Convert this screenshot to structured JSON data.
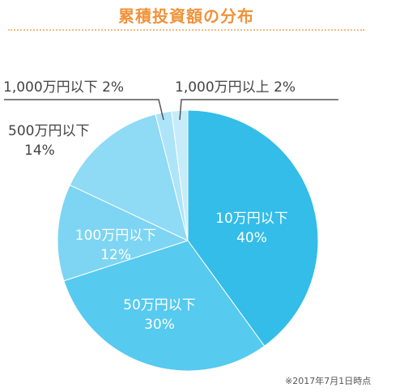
{
  "title": "累積投資額の分布",
  "footnote": "※2017年7月1日時点",
  "colors": {
    "title": "#f0933a",
    "title_rule": "#f5b980",
    "slices": [
      "#33bde8",
      "#56caef",
      "#7dd5f3",
      "#8fdaf5",
      "#aee4f7",
      "#c6ecf9"
    ]
  },
  "chart_data": {
    "type": "pie",
    "title": "累積投資額の分布",
    "slices": [
      {
        "category": "10万円以下",
        "value": 40,
        "label": "40%"
      },
      {
        "category": "50万円以下",
        "value": 30,
        "label": "30%"
      },
      {
        "category": "100万円以下",
        "value": 12,
        "label": "12%"
      },
      {
        "category": "500万円以下",
        "value": 14,
        "label": "14%"
      },
      {
        "category": "1,000万円以下",
        "value": 2,
        "label": "2%"
      },
      {
        "category": "1,000万円以上",
        "value": 2,
        "label": "2%"
      }
    ]
  }
}
